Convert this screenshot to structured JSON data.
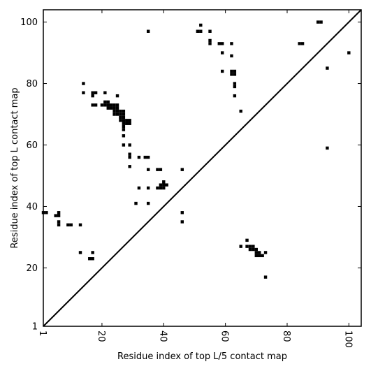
{
  "chart_data": {
    "type": "scatter",
    "xlabel": "Residue index of top L/5 contact map",
    "ylabel": "Residue index of top L contact map",
    "xlim": [
      1,
      104
    ],
    "ylim": [
      1,
      104
    ],
    "x_ticks": [
      1,
      20,
      40,
      60,
      80,
      100
    ],
    "y_ticks": [
      1,
      20,
      40,
      60,
      80,
      100
    ],
    "x_tick_labels": [
      "1",
      "20",
      "40",
      "60",
      "80",
      "100"
    ],
    "y_tick_labels": [
      "1",
      "20",
      "40",
      "60",
      "80",
      "100"
    ],
    "diagonal": {
      "from": [
        1,
        1
      ],
      "to": [
        104,
        104
      ]
    },
    "grid": false,
    "marker_color": "#000000",
    "series": [
      {
        "points": [
          [
            52,
            99
          ],
          [
            51,
            97
          ],
          [
            52,
            97
          ],
          [
            55,
            97
          ],
          [
            35,
            97
          ],
          [
            55,
            94
          ],
          [
            55,
            93
          ],
          [
            58,
            93
          ],
          [
            59,
            93
          ],
          [
            62,
            93
          ],
          [
            59,
            90
          ],
          [
            62,
            89
          ],
          [
            59,
            84
          ],
          [
            62,
            84
          ],
          [
            63,
            84
          ],
          [
            62,
            83
          ],
          [
            63,
            83
          ],
          [
            63,
            80
          ],
          [
            63,
            79
          ],
          [
            63,
            76
          ],
          [
            65,
            71
          ],
          [
            91,
            100
          ],
          [
            90,
            100
          ],
          [
            100,
            90
          ],
          [
            84,
            93
          ],
          [
            85,
            93
          ],
          [
            93,
            85
          ],
          [
            93,
            59
          ],
          [
            14,
            80
          ],
          [
            14,
            77
          ],
          [
            17,
            77
          ],
          [
            18,
            77
          ],
          [
            21,
            77
          ],
          [
            25,
            76
          ],
          [
            17,
            76
          ],
          [
            17,
            73
          ],
          [
            18,
            73
          ],
          [
            20,
            73
          ],
          [
            21,
            73
          ],
          [
            22,
            73
          ],
          [
            23,
            73
          ],
          [
            24,
            73
          ],
          [
            25,
            73
          ],
          [
            21,
            74
          ],
          [
            22,
            74
          ],
          [
            22,
            72
          ],
          [
            23,
            72
          ],
          [
            24,
            72
          ],
          [
            25,
            72
          ],
          [
            24,
            71
          ],
          [
            25,
            71
          ],
          [
            26,
            71
          ],
          [
            27,
            71
          ],
          [
            24,
            70
          ],
          [
            25,
            70
          ],
          [
            26,
            70
          ],
          [
            27,
            70
          ],
          [
            26,
            69
          ],
          [
            27,
            69
          ],
          [
            26,
            68
          ],
          [
            27,
            68
          ],
          [
            28,
            68
          ],
          [
            29,
            68
          ],
          [
            27,
            67
          ],
          [
            28,
            67
          ],
          [
            29,
            67
          ],
          [
            27,
            66
          ],
          [
            27,
            65
          ],
          [
            27,
            63
          ],
          [
            27,
            60
          ],
          [
            29,
            60
          ],
          [
            29,
            57
          ],
          [
            29,
            56
          ],
          [
            29,
            53
          ],
          [
            32,
            56
          ],
          [
            34,
            56
          ],
          [
            35,
            56
          ],
          [
            35,
            52
          ],
          [
            38,
            52
          ],
          [
            39,
            52
          ],
          [
            46,
            52
          ],
          [
            40,
            48
          ],
          [
            39,
            47
          ],
          [
            40,
            47
          ],
          [
            41,
            47
          ],
          [
            38,
            46
          ],
          [
            39,
            46
          ],
          [
            40,
            46
          ],
          [
            32,
            46
          ],
          [
            35,
            46
          ],
          [
            31,
            41
          ],
          [
            35,
            41
          ],
          [
            46,
            38
          ],
          [
            46,
            35
          ],
          [
            1,
            38
          ],
          [
            2,
            38
          ],
          [
            6,
            38
          ],
          [
            5,
            37
          ],
          [
            6,
            37
          ],
          [
            6,
            35
          ],
          [
            6,
            34
          ],
          [
            9,
            34
          ],
          [
            10,
            34
          ],
          [
            13,
            34
          ],
          [
            13,
            25
          ],
          [
            17,
            25
          ],
          [
            16,
            23
          ],
          [
            17,
            23
          ],
          [
            67,
            29
          ],
          [
            65,
            27
          ],
          [
            67,
            27
          ],
          [
            68,
            27
          ],
          [
            69,
            27
          ],
          [
            68,
            26
          ],
          [
            69,
            26
          ],
          [
            70,
            26
          ],
          [
            70,
            25
          ],
          [
            71,
            25
          ],
          [
            73,
            25
          ],
          [
            70,
            24
          ],
          [
            71,
            24
          ],
          [
            72,
            24
          ],
          [
            73,
            17
          ]
        ]
      }
    ]
  }
}
